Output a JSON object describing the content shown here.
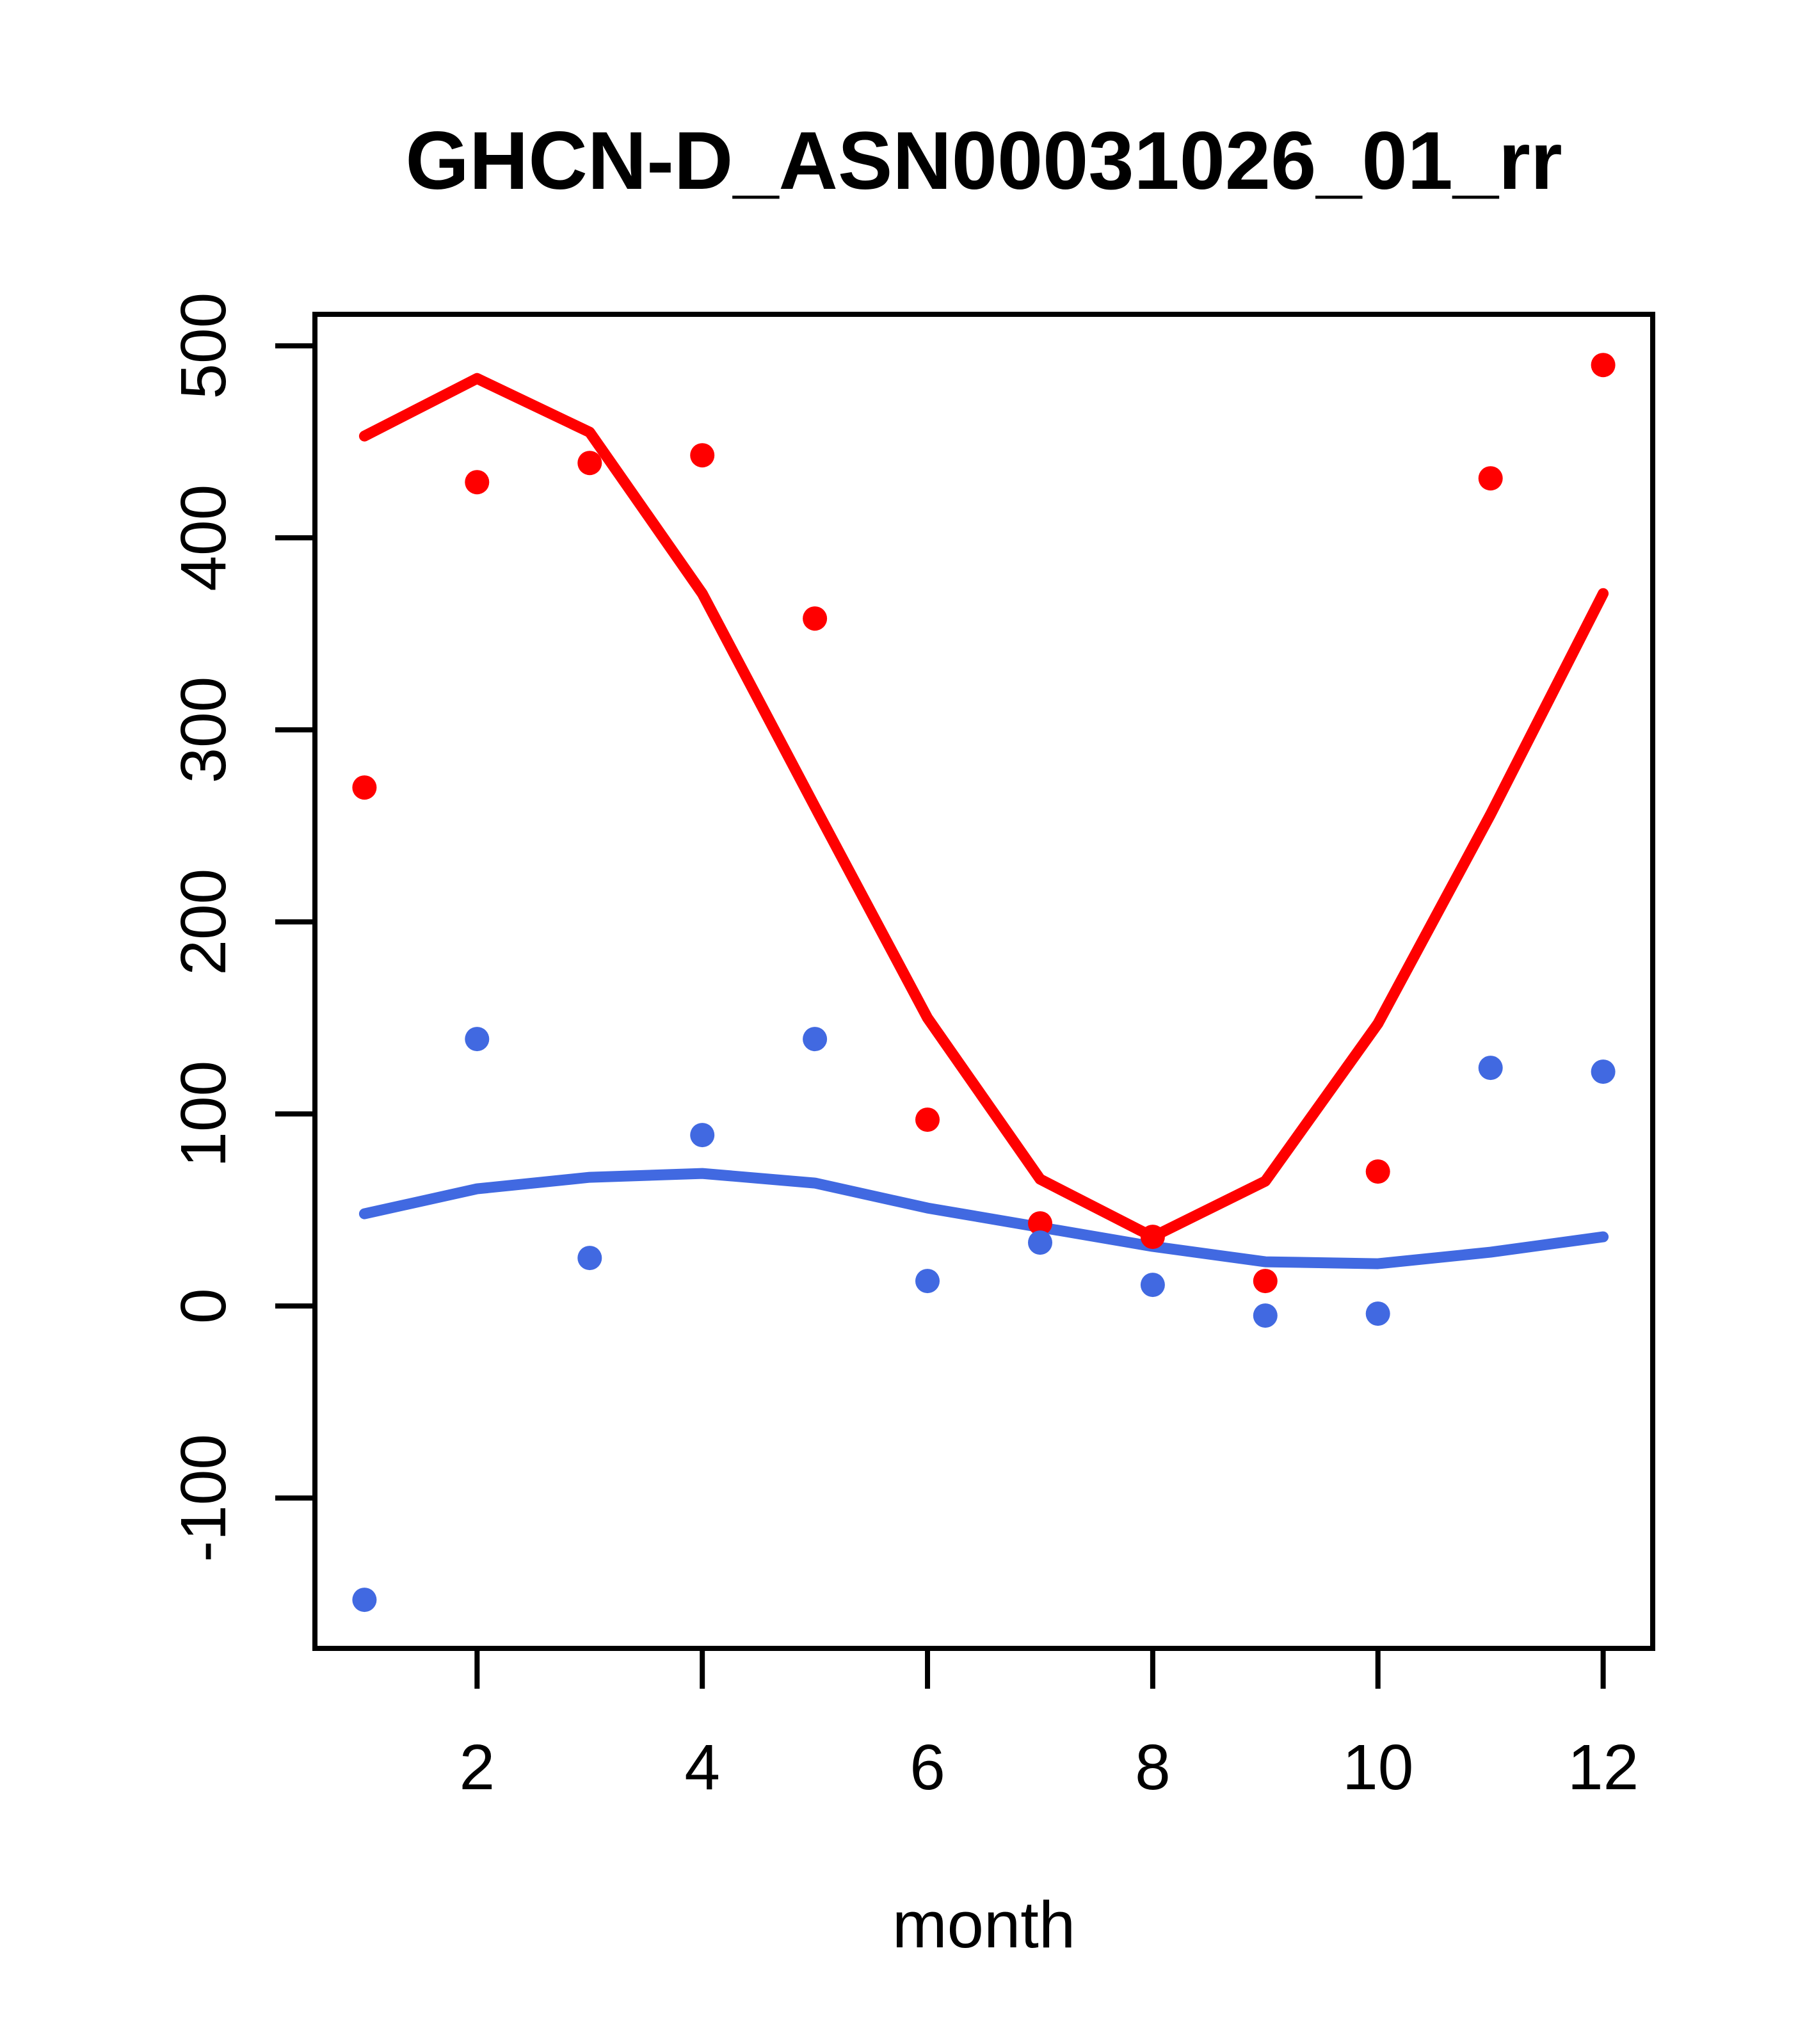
{
  "title": "GHCN-D_ASN00031026_01_rr",
  "chart_data": {
    "type": "scatter",
    "title": "GHCN-D_ASN00031026_01_rr",
    "xlabel": "month",
    "ylabel": "",
    "x": [
      1,
      2,
      3,
      4,
      5,
      6,
      7,
      8,
      9,
      10,
      11,
      12
    ],
    "series": [
      {
        "name": "red-points",
        "kind": "points",
        "color": "#FF0000",
        "values": [
          270,
          429,
          439,
          443,
          358,
          97,
          43,
          36,
          13,
          70,
          431,
          490
        ]
      },
      {
        "name": "blue-points",
        "kind": "points",
        "color": "#4169E1",
        "values": [
          -153,
          139,
          25,
          89,
          139,
          13,
          33,
          11,
          -5,
          -4,
          124,
          122
        ]
      },
      {
        "name": "red-trend-line",
        "kind": "line",
        "color": "#FF0000",
        "values": [
          453,
          483,
          455,
          371,
          260,
          150,
          66,
          36,
          65,
          147,
          256,
          371
        ]
      },
      {
        "name": "blue-trend-line",
        "kind": "line",
        "color": "#4169E1",
        "values": [
          48,
          61,
          67,
          69,
          64,
          51,
          41,
          31,
          23,
          22,
          28,
          36
        ]
      }
    ],
    "x_ticks": [
      2,
      4,
      6,
      8,
      10,
      12
    ],
    "y_ticks": [
      -100,
      0,
      100,
      200,
      300,
      400,
      500
    ],
    "xlim": [
      0.56,
      12.44
    ],
    "ylim": [
      -178.3,
      516.4
    ],
    "grid": false,
    "legend": "none",
    "point_radius_px": 19,
    "colors": {
      "red": "#FF0000",
      "blue": "#4169E1",
      "axis": "#000000"
    }
  }
}
